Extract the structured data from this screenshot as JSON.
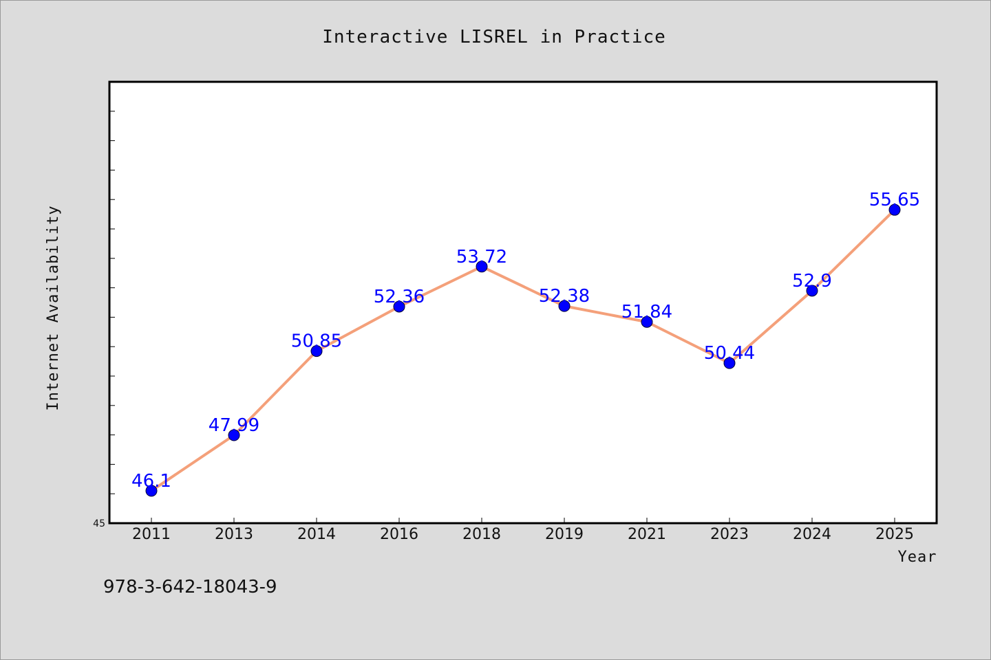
{
  "chart_data": {
    "type": "line",
    "title": "Interactive LISREL in Practice",
    "xlabel": "Year",
    "ylabel": "Internet Availability",
    "categories": [
      "2011",
      "2013",
      "2014",
      "2016",
      "2018",
      "2019",
      "2021",
      "2023",
      "2024",
      "2025"
    ],
    "series": [
      {
        "values": [
          46.1,
          47.99,
          50.85,
          52.36,
          53.72,
          52.38,
          51.84,
          50.44,
          52.9,
          55.65
        ],
        "data_labels": [
          "46.1",
          "47.99",
          "50.85",
          "52.36",
          "53.72",
          "52.38",
          "51.84",
          "50.44",
          "52.9",
          "55.65"
        ]
      }
    ],
    "ylim": [
      45,
      60
    ],
    "y_tick_labels": [
      "45"
    ],
    "grid": false,
    "legend": "none",
    "colors": {
      "line": "#f4a07a",
      "marker": "#0000ff",
      "data_label": "#0000ff",
      "plot_background": "#ffffff",
      "page_background": "#dcdcdc"
    }
  },
  "footer": {
    "isbn": "978-3-642-18043-9"
  }
}
